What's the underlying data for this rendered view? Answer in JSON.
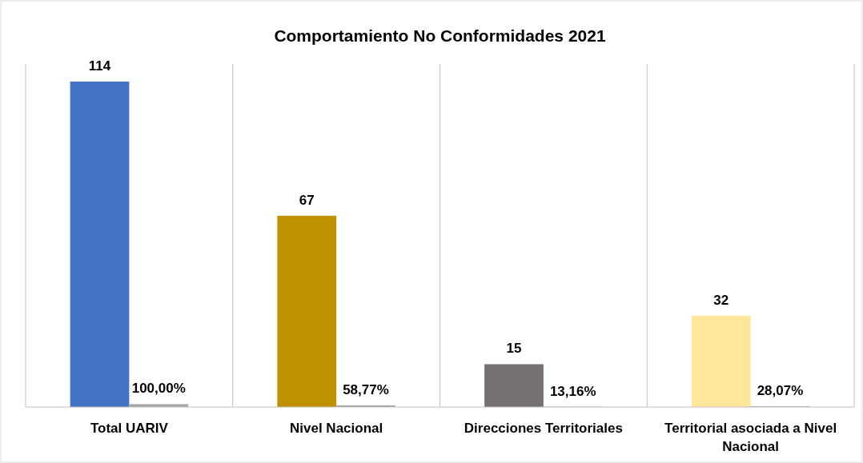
{
  "chart_data": {
    "type": "bar",
    "title": "Comportamiento No Conformidades 2021",
    "categories": [
      "Total UARIV",
      "Nivel Nacional",
      "Direcciones Territoriales",
      "Territorial asociada a Nivel Nacional"
    ],
    "series": [
      {
        "colors": [
          "#4472c4",
          "#bf9000",
          "#767171",
          "#ffe699"
        ],
        "values": [
          114,
          67,
          15,
          32
        ]
      },
      {
        "color": "#a5a5a5",
        "values": [
          1,
          0.5877,
          0.1316,
          0.2807
        ],
        "value_labels": [
          "100,00%",
          "58,77%",
          "13,16%",
          "28,07%"
        ]
      }
    ],
    "data_labels": true,
    "grid": "x"
  }
}
